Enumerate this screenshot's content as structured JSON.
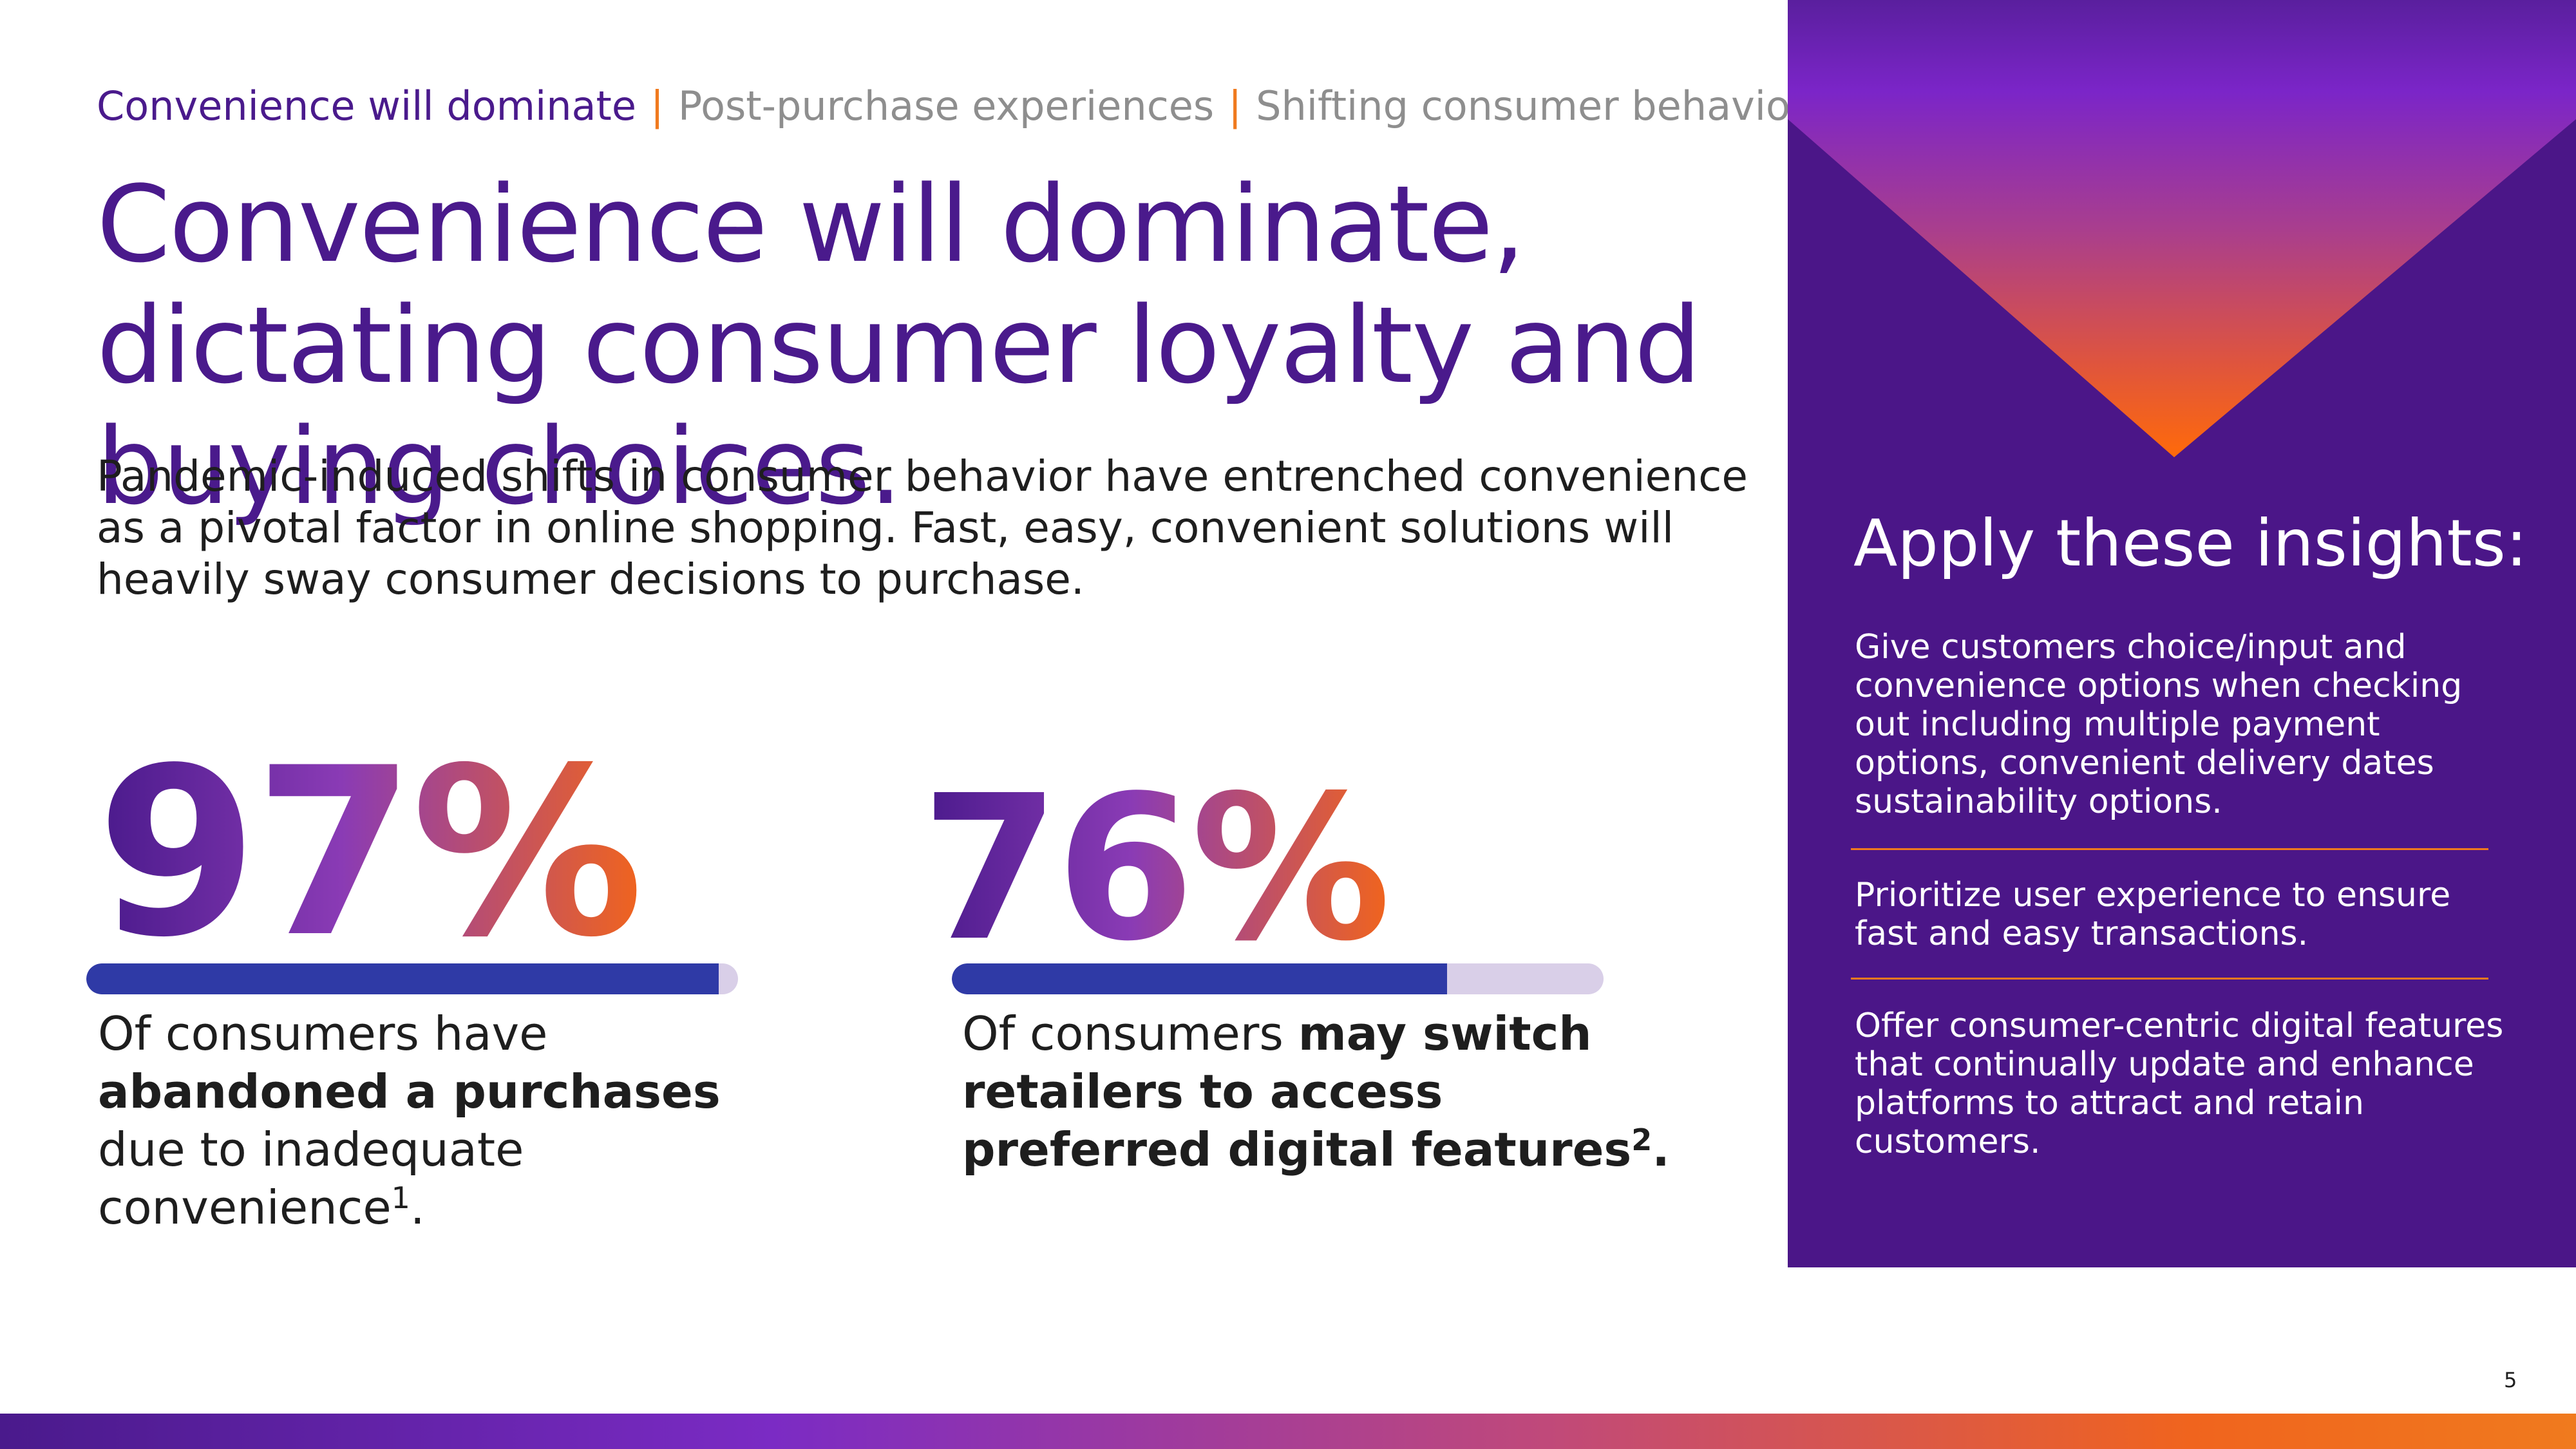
{
  "nav": {
    "items": [
      "Convenience will dominate",
      "Post-purchase experiences",
      "Shifting consumer behaviors"
    ],
    "separator": "|"
  },
  "headline": "Convenience will dominate, dictating consumer loyalty and buying choices.",
  "intro": "Pandemic-induced shifts in consumer behavior have entrenched convenience as a pivotal factor in online shopping. Fast, easy, convenient solutions will heavily sway consumer decisions to purchase.",
  "stats": [
    {
      "value": "97%",
      "fill": 0.97,
      "caption_pre": "Of consumers have ",
      "caption_bold": "abandoned a purchases",
      "caption_post": " due to inadequate convenience",
      "footnote": "1",
      "caption_end": "."
    },
    {
      "value": "76%",
      "fill": 0.76,
      "caption_pre": "Of consumers ",
      "caption_bold": "may switch retailers to access preferred digital features",
      "footnote": "2",
      "caption_end": "."
    }
  ],
  "panel": {
    "title": "Apply these insights:",
    "insights": [
      "Give customers choice/input and convenience options when checking out including multiple payment options, convenient delivery dates sustainability options.",
      "Prioritize user experience to ensure fast and easy transactions.",
      "Offer consumer-centric digital features that continually update and enhance platforms to attract and retain customers."
    ]
  },
  "page_number": "5",
  "colors": {
    "purple": "#4a1a8c",
    "panel": "#4b1688",
    "orange": "#f07a1e",
    "bar_fill": "#2f3aa6",
    "bar_track": "#d9cfe8"
  }
}
